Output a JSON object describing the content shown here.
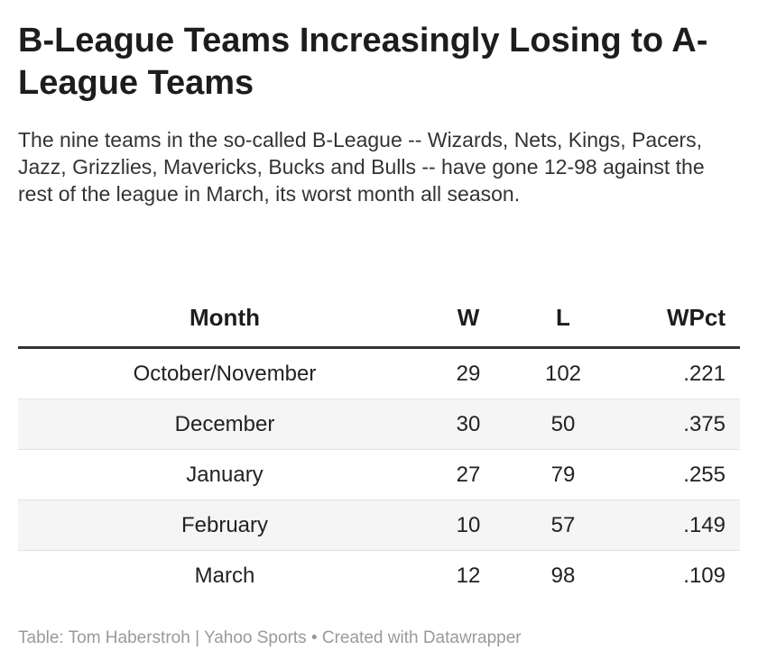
{
  "title": "B-League Teams Increasingly Losing to A-League Teams",
  "description": "The nine teams in the so-called B-League -- Wizards, Nets, Kings, Pacers, Jazz, Grizzlies, Mavericks, Bucks and Bulls -- have gone 12-98 against the rest of the league in March, its worst month all season.",
  "table": {
    "headers": [
      "Month",
      "W",
      "L",
      "WPct"
    ],
    "rows": [
      [
        "October/November",
        "29",
        "102",
        ".221"
      ],
      [
        "December",
        "30",
        "50",
        ".375"
      ],
      [
        "January",
        "27",
        "79",
        ".255"
      ],
      [
        "February",
        "10",
        "57",
        ".149"
      ],
      [
        "March",
        "12",
        "98",
        ".109"
      ]
    ]
  },
  "footer": "Table: Tom Haberstroh | Yahoo Sports • Created with Datawrapper"
}
